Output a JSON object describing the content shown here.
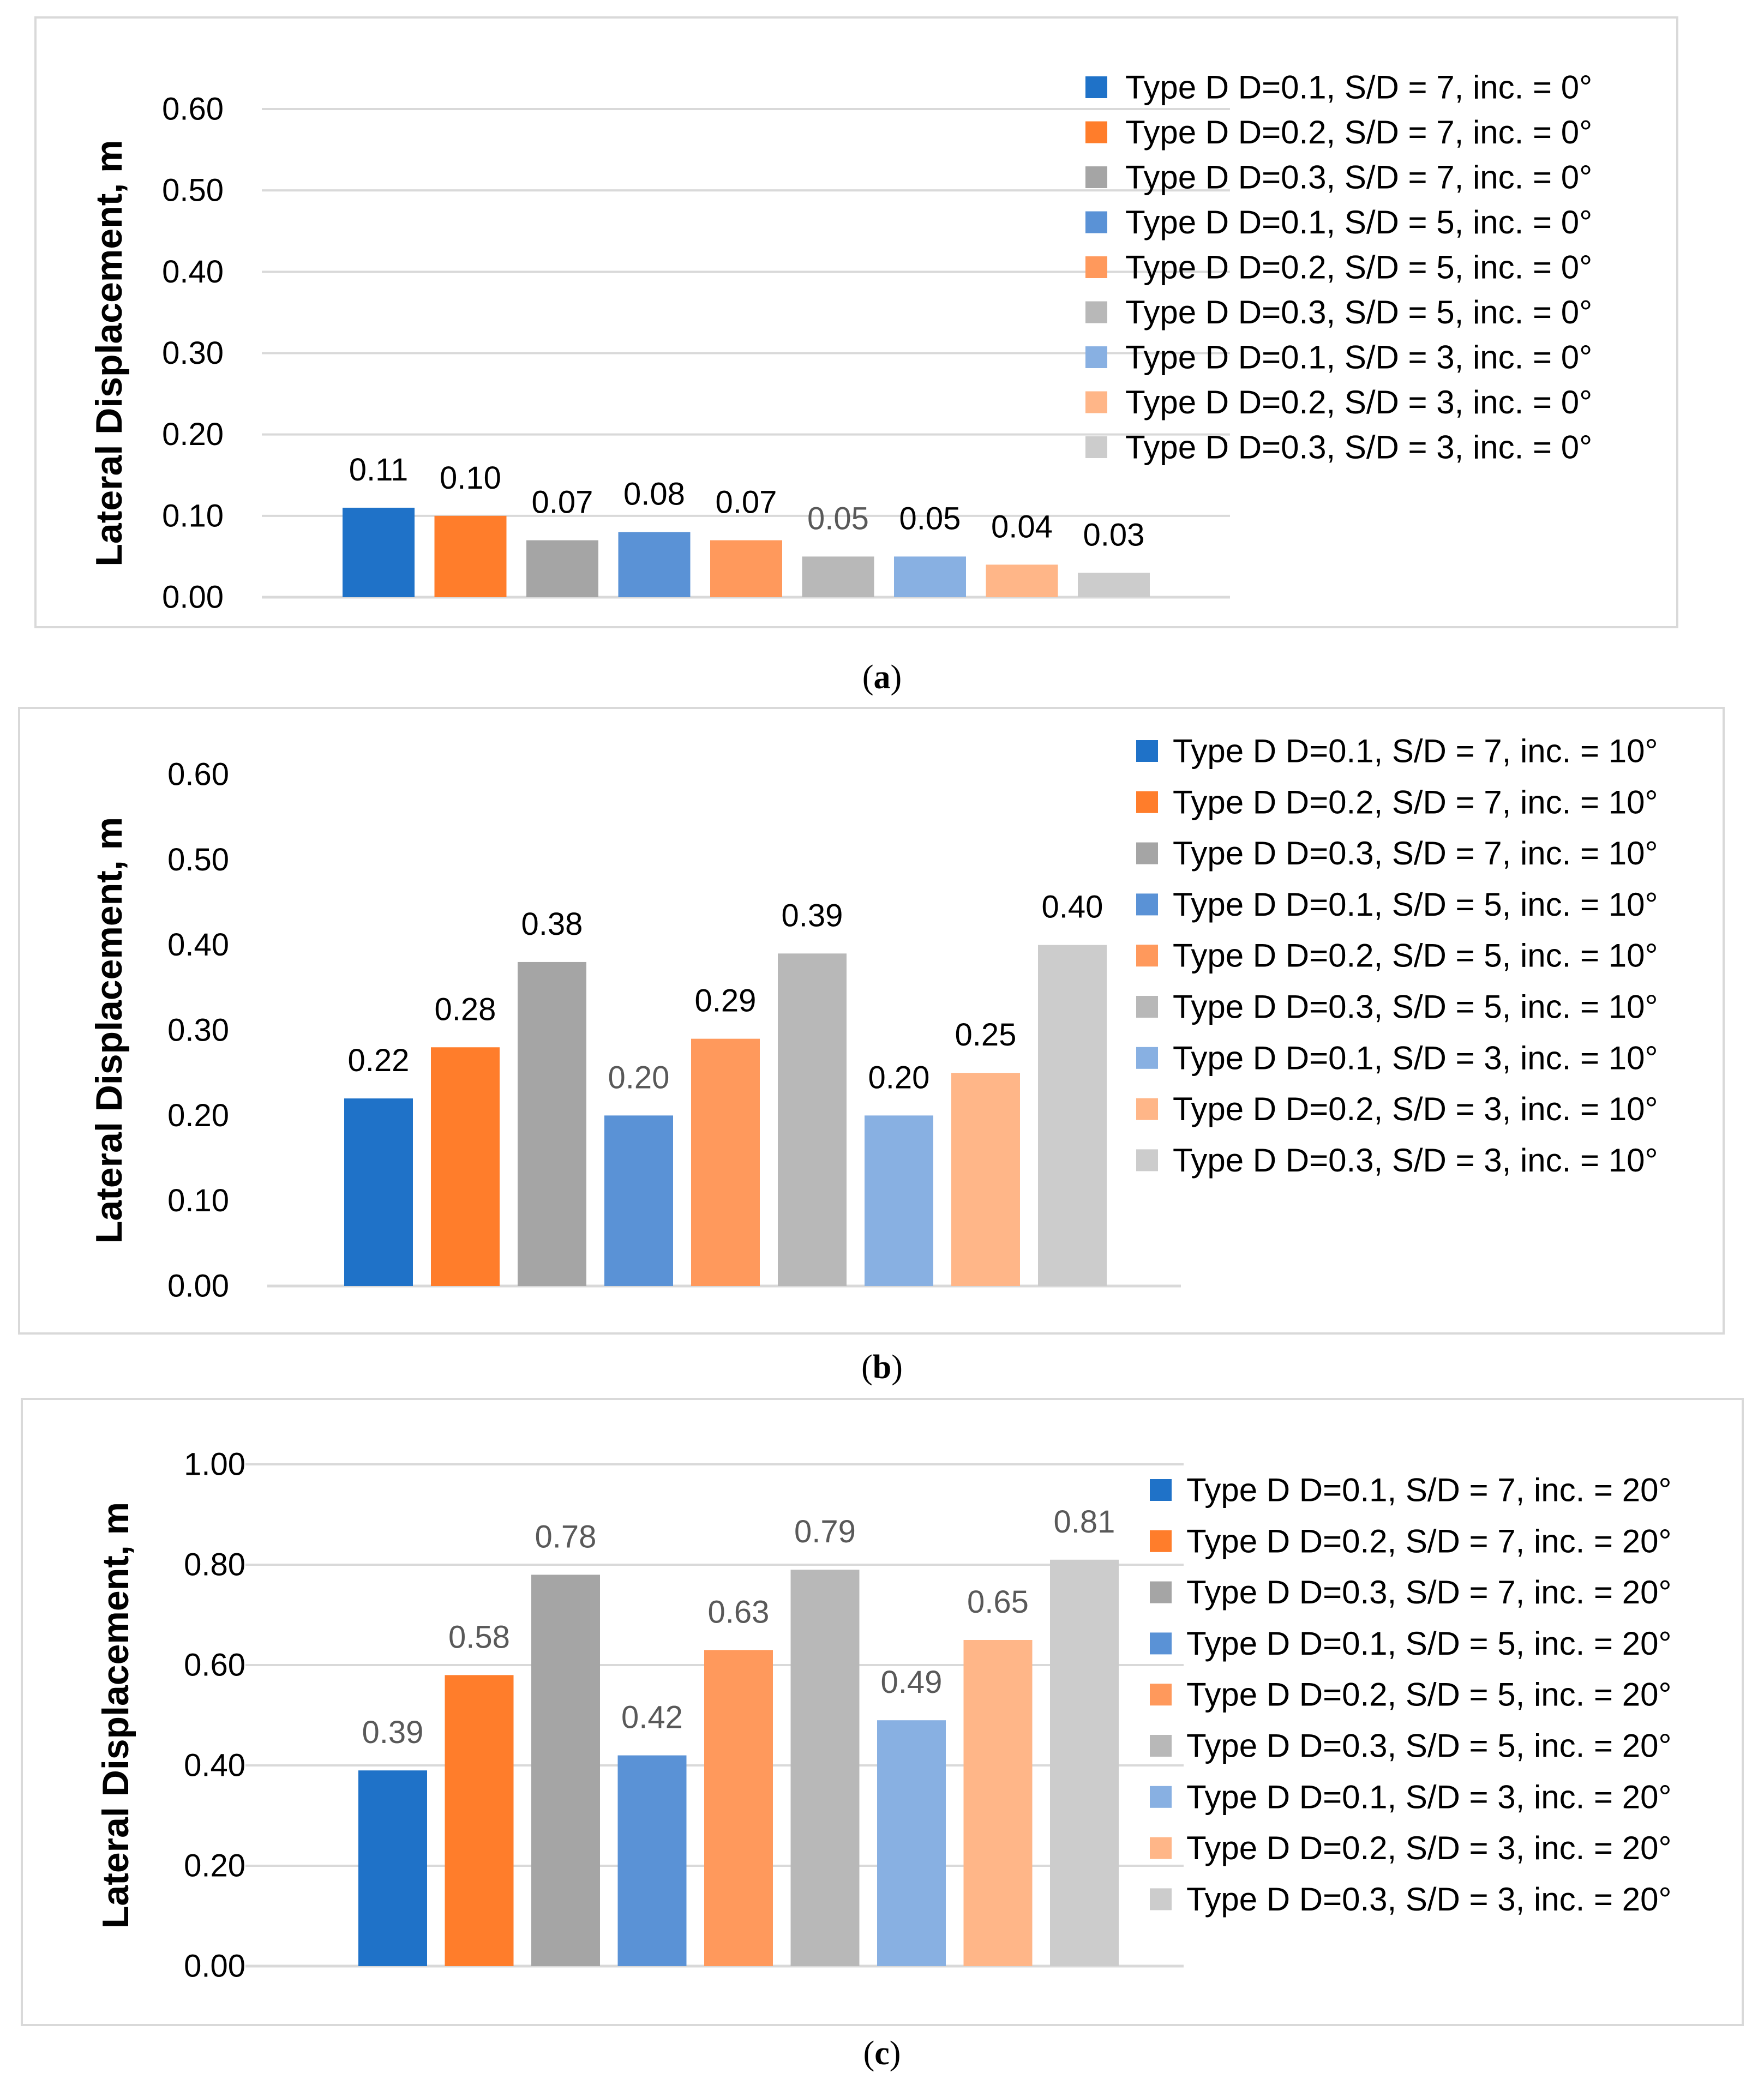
{
  "chart_data": [
    {
      "type": "bar",
      "caption": "(a)",
      "caption_letter": "a",
      "ylabel": "Lateral Displacement, m",
      "xlabel": "",
      "ylim": [
        0,
        0.6
      ],
      "yticks": [
        "0.00",
        "0.10",
        "0.20",
        "0.30",
        "0.40",
        "0.50",
        "0.60"
      ],
      "ytick_values": [
        0,
        0.1,
        0.2,
        0.3,
        0.4,
        0.5,
        0.6
      ],
      "grid": true,
      "legend_position": "right",
      "series": [
        {
          "name": "Type D D=0.1, S/D = 7, inc. = 0°",
          "value": 0.11,
          "label": "0.11",
          "color": "#1f72c8"
        },
        {
          "name": "Type D D=0.2, S/D = 7, inc. = 0°",
          "value": 0.1,
          "label": "0.10",
          "color": "#ff7d2b"
        },
        {
          "name": "Type D D=0.3, S/D = 7, inc. = 0°",
          "value": 0.07,
          "label": "0.07",
          "color": "#a5a5a5"
        },
        {
          "name": "Type D D=0.1, S/D = 5, inc. = 0°",
          "value": 0.08,
          "label": "0.08",
          "color": "#5a92d6"
        },
        {
          "name": "Type D D=0.2, S/D = 5, inc. = 0°",
          "value": 0.07,
          "label": "0.07",
          "color": "#ff995c"
        },
        {
          "name": "Type D D=0.3, S/D = 5, inc. = 0°",
          "value": 0.05,
          "label": "0.05",
          "color": "#b8b8b8"
        },
        {
          "name": "Type D D=0.1, S/D = 3, inc. = 0°",
          "value": 0.05,
          "label": "0.05",
          "color": "#88b0e2"
        },
        {
          "name": "Type D D=0.2, S/D = 3, inc. = 0°",
          "value": 0.04,
          "label": "0.04",
          "color": "#ffb688"
        },
        {
          "name": "Type D D=0.3, S/D = 3, inc. = 0°",
          "value": 0.03,
          "label": "0.03",
          "color": "#cccccc"
        }
      ]
    },
    {
      "type": "bar",
      "caption": "(b)",
      "caption_letter": "b",
      "ylabel": "Lateral Displacement, m",
      "xlabel": "",
      "ylim": [
        0,
        0.6
      ],
      "yticks": [
        "0.00",
        "0.10",
        "0.20",
        "0.30",
        "0.40",
        "0.50",
        "0.60"
      ],
      "ytick_values": [
        0,
        0.1,
        0.2,
        0.3,
        0.4,
        0.5,
        0.6
      ],
      "grid": false,
      "legend_position": "right",
      "series": [
        {
          "name": "Type D D=0.1, S/D = 7, inc. = 10°",
          "value": 0.22,
          "label": "0.22",
          "color": "#1f72c8"
        },
        {
          "name": "Type D D=0.2, S/D = 7, inc. = 10°",
          "value": 0.28,
          "label": "0.28",
          "color": "#ff7d2b"
        },
        {
          "name": "Type D D=0.3, S/D = 7, inc. = 10°",
          "value": 0.38,
          "label": "0.38",
          "color": "#a5a5a5"
        },
        {
          "name": "Type D D=0.1, S/D = 5, inc. = 10°",
          "value": 0.2,
          "label": "0.20",
          "color": "#5a92d6"
        },
        {
          "name": "Type D D=0.2, S/D = 5, inc. = 10°",
          "value": 0.29,
          "label": "0.29",
          "color": "#ff995c"
        },
        {
          "name": "Type D D=0.3, S/D = 5, inc. = 10°",
          "value": 0.39,
          "label": "0.39",
          "color": "#b8b8b8"
        },
        {
          "name": "Type D D=0.1, S/D = 3, inc. = 10°",
          "value": 0.2,
          "label": "0.20",
          "color": "#88b0e2"
        },
        {
          "name": "Type D D=0.2, S/D = 3, inc. = 10°",
          "value": 0.25,
          "label": "0.25",
          "color": "#ffb688"
        },
        {
          "name": "Type D D=0.3, S/D = 3, inc. = 10°",
          "value": 0.4,
          "label": "0.40",
          "color": "#cccccc"
        }
      ]
    },
    {
      "type": "bar",
      "caption": "(c)",
      "caption_letter": "c",
      "ylabel": "Lateral Displacement, m",
      "xlabel": "",
      "ylim": [
        0,
        1.0
      ],
      "yticks": [
        "0.00",
        "0.20",
        "0.40",
        "0.60",
        "0.80",
        "1.00"
      ],
      "ytick_values": [
        0,
        0.2,
        0.4,
        0.6,
        0.8,
        1.0
      ],
      "grid": true,
      "legend_position": "right",
      "series": [
        {
          "name": "Type D D=0.1, S/D = 7, inc. = 20°",
          "value": 0.39,
          "label": "0.39",
          "color": "#1f72c8"
        },
        {
          "name": "Type D D=0.2, S/D = 7, inc. = 20°",
          "value": 0.58,
          "label": "0.58",
          "color": "#ff7d2b"
        },
        {
          "name": "Type D D=0.3, S/D = 7, inc. = 20°",
          "value": 0.78,
          "label": "0.78",
          "color": "#a5a5a5"
        },
        {
          "name": "Type D D=0.1, S/D = 5, inc. = 20°",
          "value": 0.42,
          "label": "0.42",
          "color": "#5a92d6"
        },
        {
          "name": "Type D D=0.2, S/D = 5, inc. = 20°",
          "value": 0.63,
          "label": "0.63",
          "color": "#ff995c"
        },
        {
          "name": "Type D D=0.3, S/D = 5, inc. = 20°",
          "value": 0.79,
          "label": "0.79",
          "color": "#b8b8b8"
        },
        {
          "name": "Type D D=0.1, S/D = 3, inc. = 20°",
          "value": 0.49,
          "label": "0.49",
          "color": "#88b0e2"
        },
        {
          "name": "Type D D=0.2, S/D = 3, inc. = 20°",
          "value": 0.65,
          "label": "0.65",
          "color": "#ffb688"
        },
        {
          "name": "Type D D=0.3, S/D = 3, inc. = 20°",
          "value": 0.81,
          "label": "0.81",
          "color": "#cccccc"
        }
      ]
    }
  ],
  "colors": {
    "gridline": "#d9d9d9",
    "frame": "#d9d9d9",
    "text": "#000000",
    "data_label_muted": "#595959"
  }
}
